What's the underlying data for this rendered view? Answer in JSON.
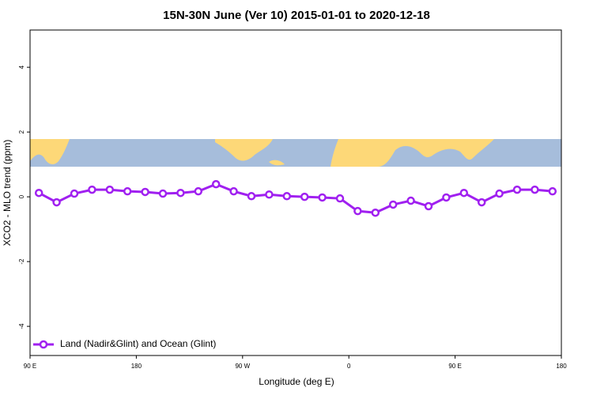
{
  "chart_data": {
    "type": "line",
    "title": "15N-30N June (Ver 10)   2015-01-01 to 2020-12-18",
    "xlabel": "Longitude (deg E)",
    "ylabel": "XCO2 - MLO trend (ppm)",
    "x": [
      97.5,
      112.5,
      127.5,
      142.5,
      157.5,
      172.5,
      187.5,
      202.5,
      217.5,
      232.5,
      247.5,
      262.5,
      277.5,
      292.5,
      307.5,
      322.5,
      337.5,
      352.5,
      367.5,
      382.5,
      397.5,
      412.5,
      427.5,
      442.5,
      457.5,
      472.5,
      487.5,
      502.5,
      517.5,
      532.5
    ],
    "series": [
      {
        "name": "Land (Nadir&Glint) and Ocean (Glint)",
        "color": "#a020f0",
        "values": [
          0.12,
          -0.17,
          0.1,
          0.22,
          0.22,
          0.17,
          0.15,
          0.1,
          0.12,
          0.17,
          0.39,
          0.17,
          0.02,
          0.07,
          0.02,
          0,
          -0.02,
          -0.05,
          -0.44,
          -0.49,
          -0.24,
          -0.12,
          -0.29,
          -0.02,
          0.12,
          -0.17,
          0.1,
          0.22,
          0.22,
          0.17
        ]
      }
    ],
    "xlim": [
      90,
      540
    ],
    "ylim": [
      -4.9,
      5.15
    ],
    "xticks": [
      {
        "value": 90,
        "label": "90 E"
      },
      180,
      {
        "value": 270,
        "label": "90 W"
      },
      {
        "value": 360,
        "label": "0"
      },
      {
        "value": 450,
        "label": "90 E"
      },
      {
        "value": 540,
        "label": "180"
      }
    ],
    "yticks": [
      -4,
      -2,
      0,
      2,
      4
    ],
    "legend": "bottom-left"
  }
}
